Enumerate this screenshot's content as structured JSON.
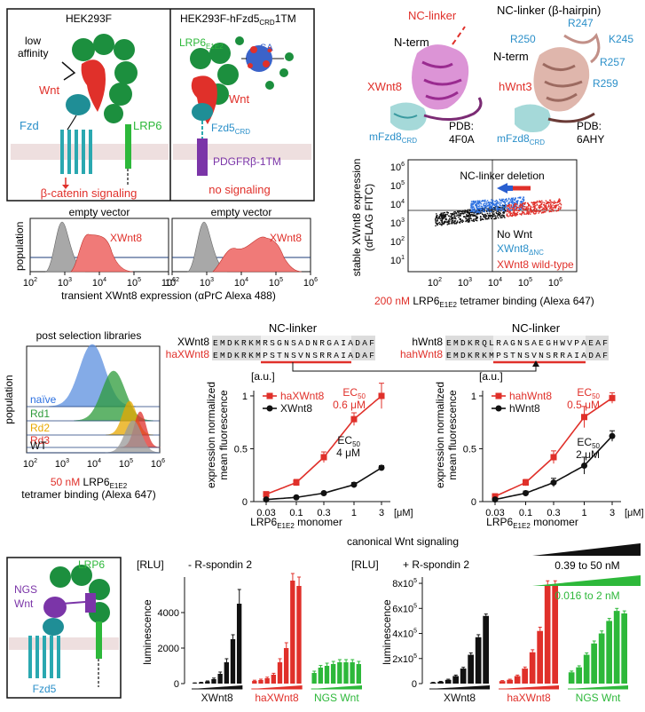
{
  "panel_a": {
    "left_title": "HEK293F",
    "right_title": "HEK293F-hFzd5",
    "right_title_sub": "CRD",
    "right_title_suffix": "1TM",
    "low_affinity": "low\naffinity",
    "wnt": "Wnt",
    "fzd": "Fzd",
    "lrp6": "LRP6",
    "beta_catenin": "β-catenin signaling",
    "lrp6_e1e2": "LRP6",
    "lrp6_e1e2_sub": "E1E2",
    "sa": "SA",
    "fzd5crd": "Fzd5",
    "fzd5crd_sub": "CRD",
    "pdgfr": "PDGFRβ-1TM",
    "no_signaling": "no signaling",
    "hist_left_label": "empty vector",
    "hist_right_label": "empty vector",
    "hist_series": "XWnt8",
    "y_label": "population",
    "x_ticks": [
      "10",
      "10",
      "10",
      "10",
      "10"
    ],
    "x_tick_exp": [
      "2",
      "3",
      "4",
      "5",
      "6"
    ],
    "x_label": "transient XWnt8 expression (αPrC Alexa 488)"
  },
  "panel_b": {
    "nc_linker": "NC-linker",
    "nterm": "N-term",
    "nterm2": "N-term",
    "xwnt8": "XWnt8",
    "mfzd8": "mFzd8",
    "crd": "CRD",
    "pdb1": "PDB:",
    "pdb1_id": "4F0A",
    "right_title": "NC-linker (β-hairpin)",
    "residues": [
      "R247",
      "R250",
      "K245",
      "R257",
      "R259"
    ],
    "hwnt3": "hWnt3",
    "pdb2": "PDB:",
    "pdb2_id": "6AHY"
  },
  "panel_c": {
    "title": "NC-linker deletion",
    "y_label": "stable XWnt8 expression",
    "y_label2": "(αFLAG FITC)",
    "y_ticks_exp": [
      "6",
      "5",
      "4",
      "3",
      "2",
      "1"
    ],
    "x_ticks_exp": [
      "2",
      "3",
      "4",
      "5",
      "6"
    ],
    "legend_no_wnt": "No Wnt",
    "legend_dnc": "XWnt8",
    "legend_dnc_sub": "ΔNC",
    "legend_wt": "XWnt8 wild-type",
    "x_label_conc": "200 nM",
    "x_label": "LRP6",
    "x_label_sub": "E1E2",
    "x_label_end": "tetramer binding (Alexa 647)"
  },
  "panel_d": {
    "title": "post selection libraries",
    "y_label": "population",
    "rows": [
      "naïve",
      "Rd1",
      "Rd2",
      "Rd3",
      "WT"
    ],
    "row_colors": [
      "#5b8fe0",
      "#2d9b3a",
      "#e8a800",
      "#e0302a",
      "#999999"
    ],
    "x_ticks_exp": [
      "2",
      "3",
      "4",
      "5",
      "6"
    ],
    "x_label_conc": "50 nM",
    "x_label": "LRP6",
    "x_label_sub": "E1E2",
    "x_label2": "tetramer binding (Alexa 647)"
  },
  "panel_e": {
    "left_header": "NC-linker",
    "right_header": "NC-linker",
    "xwnt8_name": "XWnt8",
    "haxwnt8_name": "haXWnt8",
    "hwnt8_name": "hWnt8",
    "hahwnt8_name": "hahWnt8",
    "xwnt8_seq": "EMDKRKMRSGNSADNRGAIADAF",
    "haxwnt8_seq": "EMDKRKMPSTNSVNSRRAIADAF",
    "hwnt8_seq": "EMDKRQLRAGNSAEGHWVPAEAF",
    "hahwnt8_seq": "EMDKRKMPSTNSVNSRRAIADAF",
    "unit": "[a.u.]",
    "y_label": "expression normalized",
    "y_label2": "mean fluorescence",
    "x_ticks": [
      "0.03",
      "0.1",
      "0.3",
      "1",
      "3"
    ],
    "x_unit": "[μM]",
    "x_label": "LRP6",
    "x_label_sub": "E1E2",
    "x_label_end": "monomer"
  },
  "chart_data": [
    {
      "type": "line",
      "title": "",
      "xlabel": "LRP6 E1E2 monomer [μM]",
      "ylabel": "expression normalized mean fluorescence [a.u.]",
      "x": [
        0.03,
        0.1,
        0.3,
        1,
        3
      ],
      "ylim": [
        0,
        1.05
      ],
      "xscale": "log",
      "series": [
        {
          "name": "haXWnt8",
          "color": "#e0302a",
          "values": [
            0.07,
            0.18,
            0.42,
            0.78,
            1.0
          ],
          "errors": [
            0.02,
            0.03,
            0.05,
            0.06,
            0.12
          ]
        },
        {
          "name": "XWnt8",
          "color": "#111111",
          "values": [
            0.02,
            0.04,
            0.08,
            0.16,
            0.32
          ],
          "errors": [
            0.0,
            0.0,
            0.01,
            0.02,
            0.02
          ]
        }
      ],
      "annotations": [
        {
          "text": "EC50",
          "value": "0.6 μM",
          "series": "haXWnt8"
        },
        {
          "text": "EC50",
          "value": "4 μM",
          "series": "XWnt8"
        }
      ]
    },
    {
      "type": "line",
      "title": "",
      "xlabel": "LRP6 E1E2 monomer [μM]",
      "ylabel": "expression normalized mean fluorescence [a.u.]",
      "x": [
        0.03,
        0.1,
        0.3,
        1,
        3
      ],
      "ylim": [
        0,
        1.05
      ],
      "xscale": "log",
      "series": [
        {
          "name": "hahWnt8",
          "color": "#e0302a",
          "values": [
            0.05,
            0.18,
            0.42,
            0.8,
            0.98
          ],
          "errors": [
            0.01,
            0.03,
            0.06,
            0.1,
            0.05
          ]
        },
        {
          "name": "hWnt8",
          "color": "#111111",
          "values": [
            0.02,
            0.08,
            0.18,
            0.34,
            0.62
          ],
          "errors": [
            0.01,
            0.02,
            0.04,
            0.08,
            0.05
          ]
        }
      ],
      "annotations": [
        {
          "text": "EC50",
          "value": "0.5 μM",
          "series": "hahWnt8"
        },
        {
          "text": "EC50",
          "value": "2 μM",
          "series": "hWnt8"
        }
      ]
    },
    {
      "type": "bar",
      "title": "- R-spondin 2",
      "ylabel": "luminescence [RLU]",
      "ylim": [
        0,
        6000
      ],
      "yticks": [
        0,
        2000,
        4000
      ],
      "groups": [
        {
          "name": "XWnt8",
          "color": "#111111",
          "values": [
            30,
            60,
            120,
            250,
            550,
            1200,
            2500,
            4500
          ],
          "errors": [
            10,
            15,
            30,
            60,
            100,
            200,
            250,
            800
          ]
        },
        {
          "name": "haXWnt8",
          "color": "#e0302a",
          "values": [
            150,
            200,
            300,
            500,
            1200,
            2000,
            5800,
            5500
          ],
          "errors": [
            40,
            50,
            60,
            80,
            200,
            300,
            400,
            500
          ]
        },
        {
          "name": "NGS Wnt",
          "color": "#2db83a",
          "values": [
            600,
            900,
            1000,
            1100,
            1200,
            1200,
            1200,
            1100
          ],
          "errors": [
            100,
            120,
            150,
            150,
            150,
            150,
            150,
            150
          ]
        }
      ]
    },
    {
      "type": "bar",
      "title": "+ R-spondin 2",
      "ylabel": "luminescence [RLU]",
      "ylim": [
        0,
        850000
      ],
      "yticks": [
        0,
        200000,
        400000,
        600000,
        800000
      ],
      "ytick_labels": [
        "0",
        "2x10⁵",
        "4x10⁵",
        "6x10⁵",
        "8x10⁵"
      ],
      "groups": [
        {
          "name": "XWnt8",
          "color": "#111111",
          "values": [
            8000,
            15000,
            30000,
            60000,
            120000,
            230000,
            370000,
            540000
          ],
          "errors": [
            2000,
            3000,
            5000,
            8000,
            10000,
            15000,
            20000,
            15000
          ]
        },
        {
          "name": "haXWnt8",
          "color": "#e0302a",
          "values": [
            20000,
            30000,
            60000,
            120000,
            250000,
            420000,
            780000,
            780000
          ],
          "errors": [
            4000,
            5000,
            8000,
            12000,
            20000,
            30000,
            40000,
            40000
          ]
        },
        {
          "name": "NGS Wnt",
          "color": "#2db83a",
          "values": [
            90000,
            130000,
            230000,
            320000,
            400000,
            500000,
            580000,
            560000
          ],
          "errors": [
            10000,
            12000,
            15000,
            20000,
            20000,
            20000,
            20000,
            20000
          ]
        }
      ]
    }
  ],
  "panel_f": {
    "title": "canonical Wnt signaling",
    "lrp6": "LRP6",
    "ngs": "NGS",
    "wnt": "Wnt",
    "fzd5": "Fzd5",
    "left_unit": "[RLU]",
    "left_cond": "- R-spondin 2",
    "right_unit": "[RLU]",
    "right_cond": "+ R-spondin 2",
    "y_label": "luminescence",
    "range1": "0.39 to 50 nM",
    "range2": "0.016 to 2 nM",
    "range2_color": "#2db83a",
    "left_yticks": [
      "0",
      "2000",
      "4000"
    ],
    "right_yticks": [
      "0",
      "2x10",
      "4x10",
      "6x10",
      "8x10"
    ],
    "right_ytick_exp": [
      "",
      "5",
      "5",
      "5",
      "5"
    ],
    "groups": [
      "XWnt8",
      "haXWnt8",
      "NGS Wnt"
    ],
    "group_colors": [
      "#111111",
      "#e0302a",
      "#2db83a"
    ]
  },
  "colors": {
    "red": "#e0302a",
    "blue": "#2a8fc9",
    "green": "#2db83a",
    "purple": "#7b35a8",
    "teal": "#2aa8b0"
  }
}
